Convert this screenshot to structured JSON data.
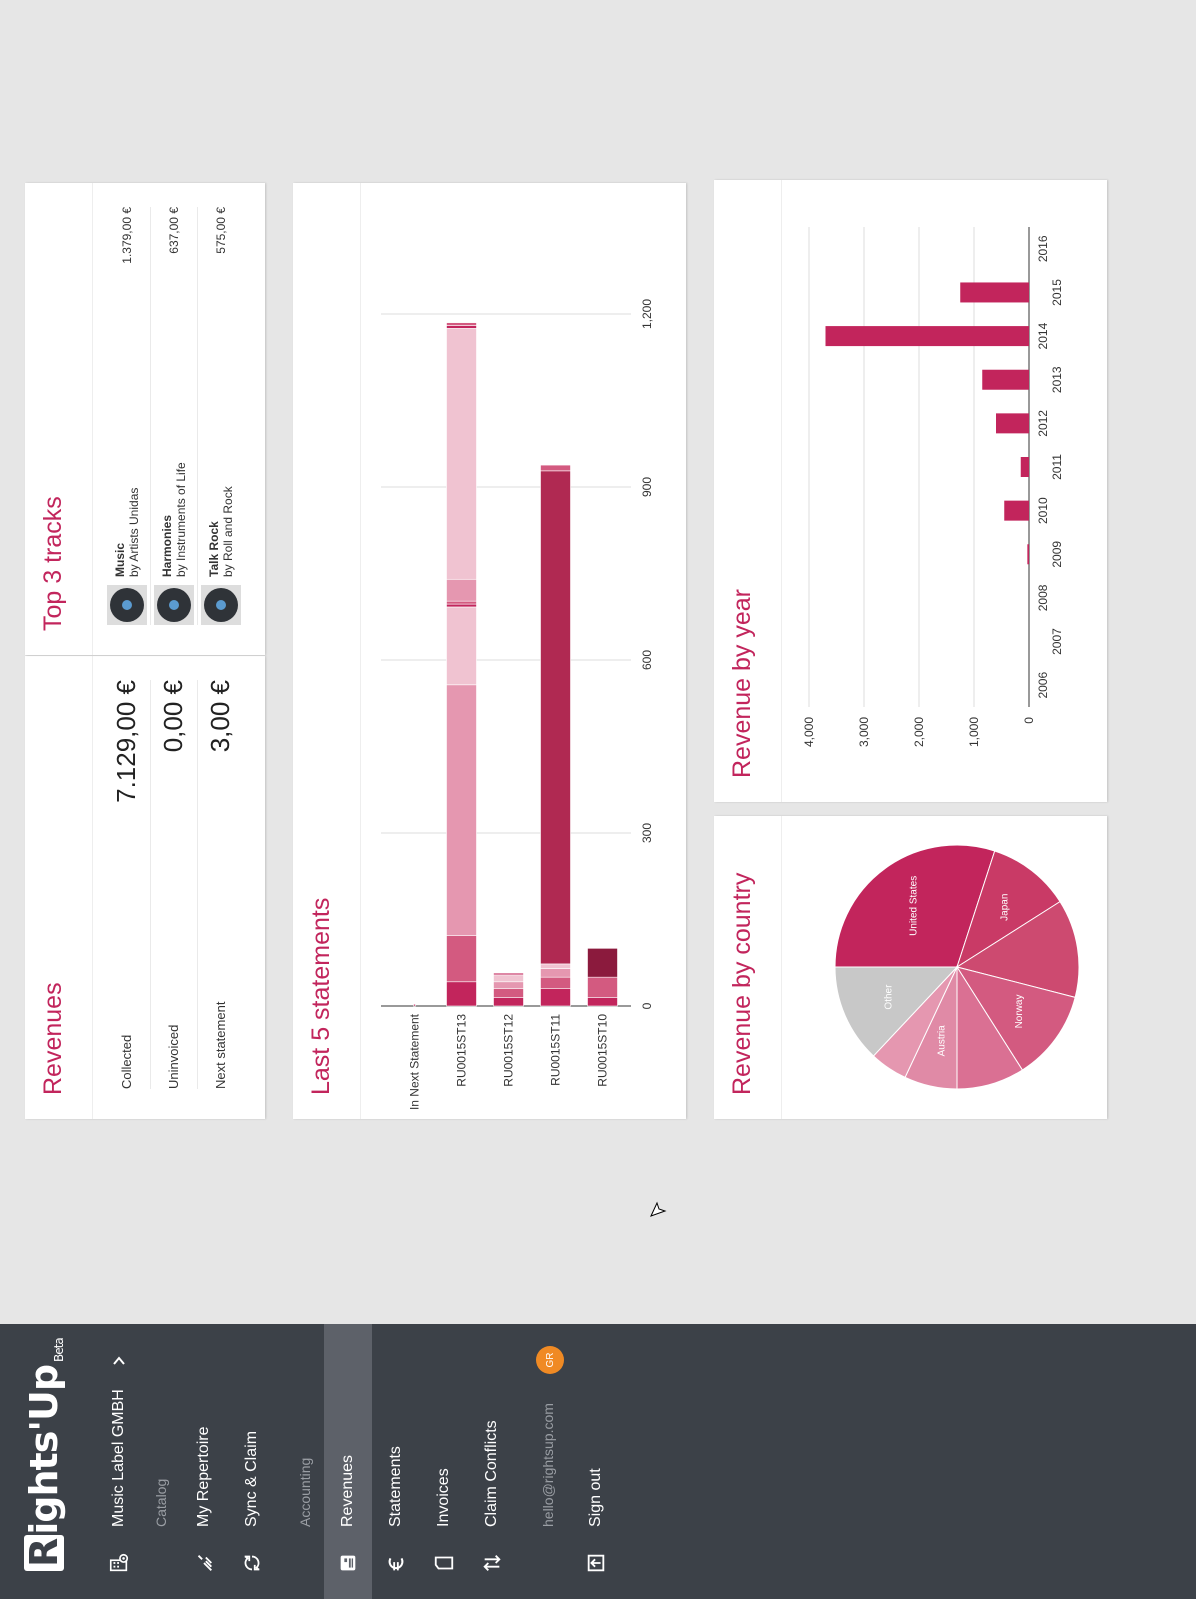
{
  "sidebar": {
    "logo_text": "ights'Up",
    "logo_letter": "R",
    "logo_beta": "Beta",
    "org_name": "Music Label GMBH",
    "section_catalog": "Catalog",
    "section_accounting": "Accounting",
    "items": [
      {
        "label": "My Repertoire",
        "icon": "repertoire-icon"
      },
      {
        "label": "Sync & Claim",
        "icon": "sync-icon"
      },
      {
        "label": "Revenues",
        "icon": "revenues-icon",
        "active": true
      },
      {
        "label": "Statements",
        "icon": "euro-icon"
      },
      {
        "label": "Invoices",
        "icon": "invoice-icon"
      },
      {
        "label": "Claim Conflicts",
        "icon": "conflict-icon"
      }
    ],
    "email": "hello@rightsup.com",
    "avatar": "GR",
    "sign_out": "Sign out"
  },
  "revenues": {
    "title": "Revenues",
    "rows": [
      {
        "label": "Collected",
        "value": "7.129,00 €"
      },
      {
        "label": "Uninvoiced",
        "value": "0,00 €"
      },
      {
        "label": "Next statement",
        "value": "3,00 €"
      }
    ]
  },
  "top_tracks": {
    "title": "Top 3 tracks",
    "tracks": [
      {
        "name": "Music",
        "artist": "by Artists Unidas",
        "amount": "1.379,00 €"
      },
      {
        "name": "Harmonies",
        "artist": "by Instruments of Life",
        "amount": "637,00 €"
      },
      {
        "name": "Talk Rock",
        "artist": "by Roll and Rock",
        "amount": "575,00 €"
      }
    ]
  },
  "chart_data": [
    {
      "type": "bar",
      "orientation": "horizontal",
      "stacked": true,
      "title": "Last 5 statements",
      "categories": [
        "In Next Statement",
        "RU0015ST13",
        "RU0015ST12",
        "RU0015ST11",
        "RU0015ST10"
      ],
      "segments": [
        [
          3
        ],
        [
          42,
          80,
          435,
          135,
          5,
          5,
          38,
          435,
          5,
          5
        ],
        [
          15,
          15,
          12,
          12,
          3
        ],
        [
          30,
          20,
          15,
          8,
          855,
          10
        ],
        [
          15,
          35,
          50
        ]
      ],
      "segment_colors": [
        "#c2255c",
        "#d35a80",
        "#e597b0",
        "#f0c3d1",
        "#8b1a3d",
        "#b02952"
      ],
      "xticks": [
        0,
        300,
        600,
        900,
        1200
      ],
      "xtick_labels": [
        "0",
        "300",
        "600",
        "900",
        "1,200"
      ],
      "xlim": [
        0,
        1200
      ],
      "grid": true
    },
    {
      "type": "pie",
      "title": "Revenue by country",
      "slices": [
        {
          "label": "United States",
          "value": 30,
          "color": "#c2255c"
        },
        {
          "label": "Japan",
          "value": 11,
          "color": "#c93a66"
        },
        {
          "label": "",
          "value": 13,
          "color": "#cd4a70"
        },
        {
          "label": "Norway",
          "value": 12,
          "color": "#d35a80"
        },
        {
          "label": "",
          "value": 9,
          "color": "#da7093"
        },
        {
          "label": "Austria",
          "value": 7,
          "color": "#e08aa6"
        },
        {
          "label": "",
          "value": 5,
          "color": "#e597b0"
        },
        {
          "label": "Other",
          "value": 13,
          "color": "#c8c8c8"
        }
      ]
    },
    {
      "type": "bar",
      "title": "Revenue by year",
      "categories": [
        "2006",
        "2007",
        "2008",
        "2009",
        "2010",
        "2011",
        "2012",
        "2013",
        "2014",
        "2015",
        "2016"
      ],
      "values": [
        0,
        0,
        0,
        30,
        450,
        150,
        600,
        850,
        3700,
        1250,
        0
      ],
      "yticks": [
        0,
        1000,
        2000,
        3000,
        4000
      ],
      "ytick_labels": [
        "0",
        "1,000",
        "2,000",
        "3,000",
        "4,000"
      ],
      "ylim": [
        0,
        4000
      ],
      "color": "#c2255c",
      "grid": true
    }
  ]
}
